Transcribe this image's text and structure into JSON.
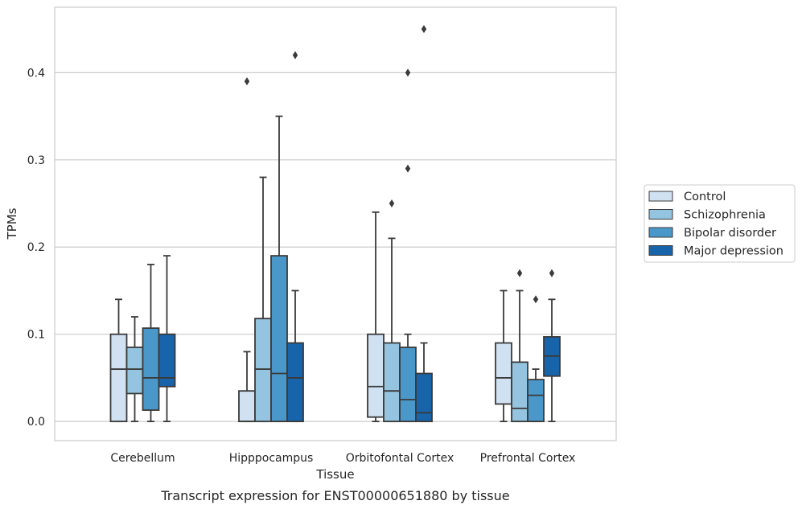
{
  "chart_data": {
    "type": "boxplot",
    "caption": "Transcript expression for ENST00000651880 by tissue",
    "xlabel": "Tissue",
    "ylabel": "TPMs",
    "ylim": [
      -0.022,
      0.475
    ],
    "yticks": [
      0.0,
      0.1,
      0.2,
      0.3,
      0.4
    ],
    "ytick_labels": [
      "0.0",
      "0.1",
      "0.2",
      "0.3",
      "0.4"
    ],
    "grid": "horizontal",
    "legend_position": "right",
    "categories": [
      "Cerebellum",
      "Hipppocampus",
      "Orbitofontal Cortex",
      "Prefrontal Cortex"
    ],
    "series": [
      {
        "name": "Control",
        "color": "#d0e1f2",
        "boxes": [
          {
            "whislo": 0.0,
            "q1": 0.0,
            "med": 0.06,
            "q3": 0.1,
            "whishi": 0.14,
            "fliers": []
          },
          {
            "whislo": 0.0,
            "q1": 0.0,
            "med": 0.0,
            "q3": 0.035,
            "whishi": 0.08,
            "fliers": [
              0.39
            ]
          },
          {
            "whislo": 0.0,
            "q1": 0.005,
            "med": 0.04,
            "q3": 0.1,
            "whishi": 0.24,
            "fliers": []
          },
          {
            "whislo": 0.0,
            "q1": 0.02,
            "med": 0.05,
            "q3": 0.09,
            "whishi": 0.15,
            "fliers": []
          }
        ]
      },
      {
        "name": "Schizophrenia",
        "color": "#94c4df",
        "boxes": [
          {
            "whislo": 0.0,
            "q1": 0.032,
            "med": 0.06,
            "q3": 0.085,
            "whishi": 0.12,
            "fliers": []
          },
          {
            "whislo": 0.0,
            "q1": 0.0,
            "med": 0.06,
            "q3": 0.118,
            "whishi": 0.28,
            "fliers": []
          },
          {
            "whislo": 0.0,
            "q1": 0.0,
            "med": 0.035,
            "q3": 0.09,
            "whishi": 0.21,
            "fliers": [
              0.25
            ]
          },
          {
            "whislo": 0.0,
            "q1": 0.0,
            "med": 0.015,
            "q3": 0.068,
            "whishi": 0.15,
            "fliers": [
              0.17
            ]
          }
        ]
      },
      {
        "name": "Bipolar disorder",
        "color": "#4a98c9",
        "boxes": [
          {
            "whislo": 0.0,
            "q1": 0.013,
            "med": 0.05,
            "q3": 0.107,
            "whishi": 0.18,
            "fliers": []
          },
          {
            "whislo": 0.0,
            "q1": 0.0,
            "med": 0.055,
            "q3": 0.19,
            "whishi": 0.35,
            "fliers": []
          },
          {
            "whislo": 0.0,
            "q1": 0.0,
            "med": 0.025,
            "q3": 0.085,
            "whishi": 0.1,
            "fliers": [
              0.29,
              0.4
            ]
          },
          {
            "whislo": 0.0,
            "q1": 0.0,
            "med": 0.03,
            "q3": 0.048,
            "whishi": 0.06,
            "fliers": [
              0.14
            ]
          }
        ]
      },
      {
        "name": "Major depression",
        "color": "#1764ab",
        "boxes": [
          {
            "whislo": 0.0,
            "q1": 0.04,
            "med": 0.05,
            "q3": 0.1,
            "whishi": 0.19,
            "fliers": []
          },
          {
            "whislo": 0.0,
            "q1": 0.0,
            "med": 0.05,
            "q3": 0.09,
            "whishi": 0.15,
            "fliers": [
              0.42
            ]
          },
          {
            "whislo": 0.0,
            "q1": 0.0,
            "med": 0.01,
            "q3": 0.055,
            "whishi": 0.09,
            "fliers": [
              0.45
            ]
          },
          {
            "whislo": 0.0,
            "q1": 0.052,
            "med": 0.075,
            "q3": 0.097,
            "whishi": 0.14,
            "fliers": [
              0.17
            ]
          }
        ]
      }
    ]
  }
}
